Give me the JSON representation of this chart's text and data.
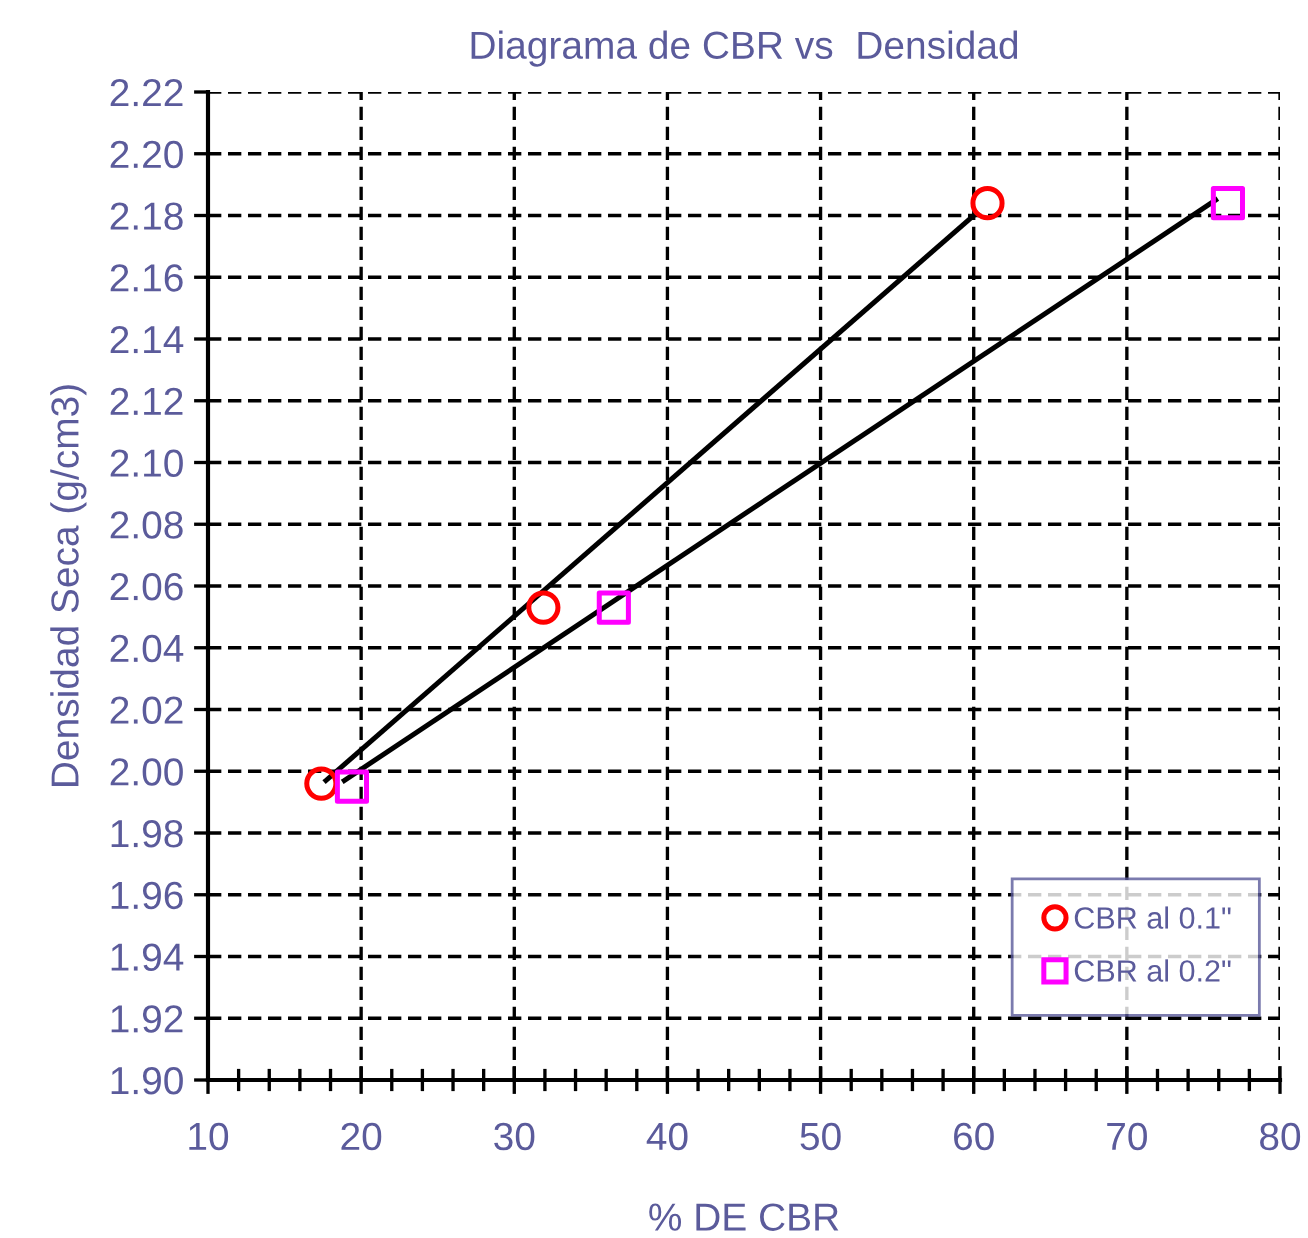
{
  "chart_data": {
    "type": "scatter",
    "title": "Diagrama de CBR vs  Densidad",
    "xlabel": "% DE CBR",
    "ylabel": "Densidad Seca (g/cm3)",
    "xlim": [
      10,
      80
    ],
    "xticks": [
      10,
      20,
      30,
      40,
      50,
      60,
      70,
      80
    ],
    "ylim": [
      1.9,
      2.22
    ],
    "yticks": [
      {
        "value": 1.9,
        "label": "1.90"
      },
      1.92,
      1.94,
      1.96,
      1.98,
      {
        "value": 2.0,
        "label": "2.00"
      },
      2.02,
      2.04,
      2.06,
      2.08,
      {
        "value": 2.1,
        "label": "2.10"
      },
      2.12,
      2.14,
      2.16,
      2.18,
      {
        "value": 2.2,
        "label": "2.20"
      },
      2.22
    ],
    "grid": true,
    "legend": "bottom right",
    "series": [
      {
        "name": "CBR al 0.1\"",
        "marker": "circle",
        "color": "#ff0000",
        "x": [
          17.4,
          31.9,
          60.9
        ],
        "values": [
          1.996,
          2.053,
          2.184
        ]
      },
      {
        "name": "CBR al 0.2\"",
        "marker": "square",
        "color": "#ff00ff",
        "x": [
          19.4,
          36.5,
          76.6
        ],
        "values": [
          1.995,
          2.053,
          2.184
        ]
      },
      {
        "type": "line",
        "marker": "none",
        "line_style": "solid",
        "color": "#000000",
        "x": [
          17.7,
          60.0
        ],
        "values": [
          1.997,
          2.18
        ]
      },
      {
        "type": "line",
        "marker": "none",
        "line_style": "solid",
        "color": "#000000",
        "x": [
          18.9,
          75.8
        ],
        "values": [
          1.997,
          2.185
        ]
      }
    ]
  }
}
